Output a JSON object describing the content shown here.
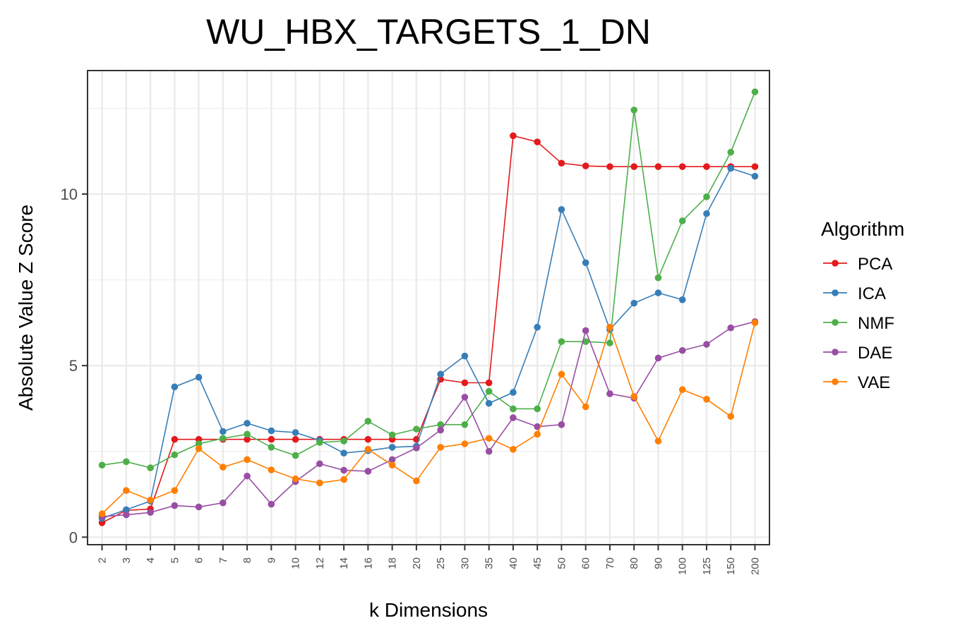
{
  "chart_data": {
    "type": "line",
    "title": "WU_HBX_TARGETS_1_DN",
    "xlabel": "k Dimensions",
    "ylabel": "Absolute Value Z Score",
    "categories": [
      "2",
      "3",
      "4",
      "5",
      "6",
      "7",
      "8",
      "9",
      "10",
      "12",
      "14",
      "16",
      "18",
      "20",
      "25",
      "30",
      "35",
      "40",
      "45",
      "50",
      "60",
      "70",
      "80",
      "90",
      "100",
      "125",
      "150",
      "200"
    ],
    "ylim": [
      -0.22,
      13.6
    ],
    "yticks": [
      0,
      5,
      10
    ],
    "ytick_labels": [
      "0",
      "5",
      "10"
    ],
    "grid": true,
    "legend": {
      "title": "Algorithm",
      "placement": "right"
    },
    "series": [
      {
        "name": "PCA",
        "color": "#e41a1c",
        "values": [
          0.42,
          0.78,
          0.82,
          2.85,
          2.85,
          2.85,
          2.85,
          2.85,
          2.85,
          2.85,
          2.85,
          2.85,
          2.85,
          2.85,
          4.6,
          4.5,
          4.5,
          11.7,
          11.52,
          10.9,
          10.82,
          10.8,
          10.8,
          10.8,
          10.8,
          10.8,
          10.8,
          10.8
        ]
      },
      {
        "name": "ICA",
        "color": "#377eb8",
        "values": [
          0.55,
          0.8,
          1.05,
          4.38,
          4.66,
          3.08,
          3.32,
          3.1,
          3.05,
          2.82,
          2.45,
          2.52,
          2.62,
          2.65,
          4.75,
          5.28,
          3.9,
          4.22,
          6.12,
          9.55,
          8.0,
          6.05,
          6.82,
          7.12,
          6.92,
          9.43,
          10.75,
          10.52
        ]
      },
      {
        "name": "NMF",
        "color": "#4daf4a",
        "values": [
          2.1,
          2.2,
          2.02,
          2.4,
          2.72,
          2.88,
          3.0,
          2.62,
          2.38,
          2.76,
          2.8,
          3.38,
          2.98,
          3.15,
          3.28,
          3.28,
          4.25,
          3.74,
          3.74,
          5.7,
          5.7,
          5.66,
          12.45,
          7.56,
          9.22,
          9.92,
          11.22,
          12.98
        ]
      },
      {
        "name": "DAE",
        "color": "#984ea3",
        "values": [
          0.6,
          0.65,
          0.72,
          0.92,
          0.88,
          1.0,
          1.78,
          0.96,
          1.62,
          2.14,
          1.95,
          1.92,
          2.26,
          2.6,
          3.12,
          4.08,
          2.5,
          3.48,
          3.22,
          3.28,
          6.02,
          4.18,
          4.05,
          5.22,
          5.44,
          5.62,
          6.1,
          6.28
        ]
      },
      {
        "name": "VAE",
        "color": "#ff7f00",
        "values": [
          0.68,
          1.36,
          1.08,
          1.36,
          2.58,
          2.04,
          2.26,
          1.96,
          1.7,
          1.58,
          1.68,
          2.56,
          2.1,
          1.64,
          2.62,
          2.72,
          2.88,
          2.56,
          3.0,
          4.75,
          3.8,
          6.12,
          4.1,
          2.8,
          4.3,
          4.02,
          3.52,
          6.25
        ]
      }
    ]
  }
}
